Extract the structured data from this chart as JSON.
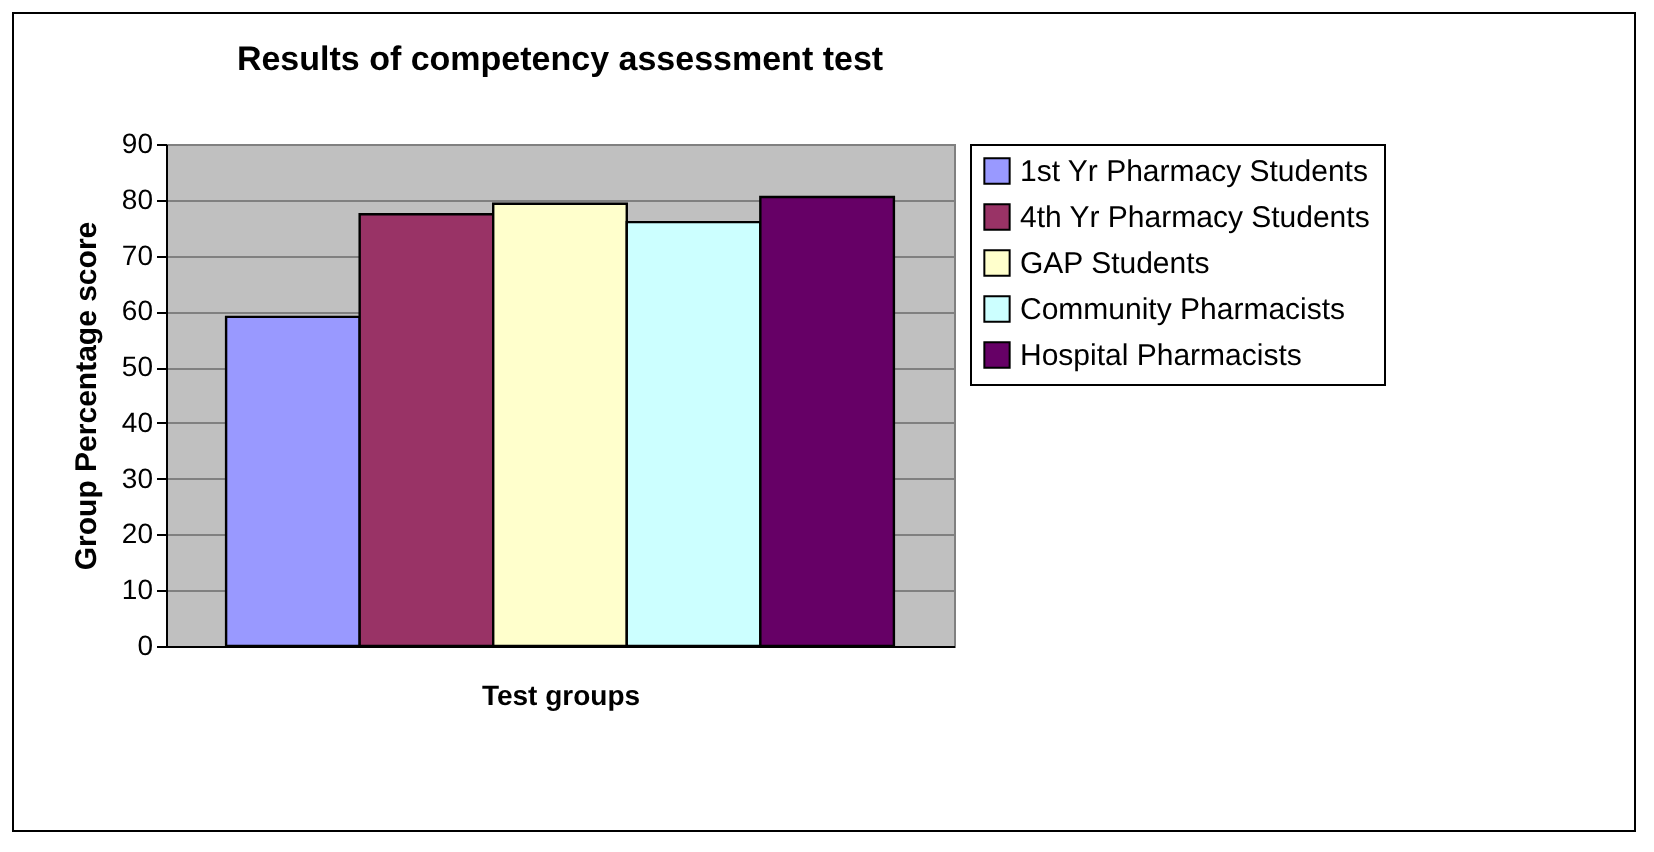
{
  "chart_data": {
    "type": "bar",
    "title": "Results of competency assessment test",
    "xlabel": "Test groups",
    "ylabel": "Group Percentage score",
    "categories": [
      null
    ],
    "series": [
      {
        "name": "1st Yr Pharmacy Students",
        "color": "#9999ff",
        "values": [
          59
        ]
      },
      {
        "name": "4th Yr Pharmacy Students",
        "color": "#993366",
        "values": [
          77.4
        ]
      },
      {
        "name": "GAP Students",
        "color": "#ffffcc",
        "values": [
          79.3
        ]
      },
      {
        "name": "Community Pharmacists",
        "color": "#ccffff",
        "values": [
          76
        ]
      },
      {
        "name": "Hospital Pharmacists",
        "color": "#660066",
        "values": [
          80.5
        ]
      }
    ],
    "ylim": [
      0,
      90
    ],
    "yticks": [
      0,
      10,
      20,
      30,
      40,
      50,
      60,
      70,
      80,
      90
    ],
    "grid": "y",
    "legend": "right",
    "tick_labels": "y"
  }
}
